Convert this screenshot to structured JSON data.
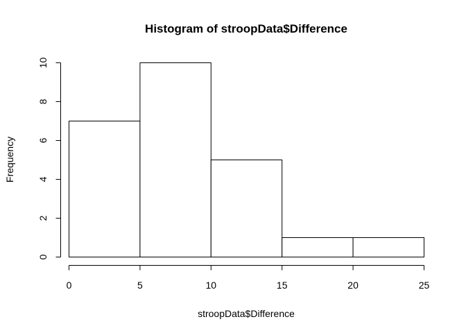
{
  "chart_data": {
    "type": "bar",
    "title": "Histogram of stroopData$Difference",
    "xlabel": "stroopData$Difference",
    "ylabel": "Frequency",
    "bins": [
      {
        "start": 0,
        "end": 5,
        "count": 7
      },
      {
        "start": 5,
        "end": 10,
        "count": 10
      },
      {
        "start": 10,
        "end": 15,
        "count": 5
      },
      {
        "start": 15,
        "end": 20,
        "count": 1
      },
      {
        "start": 20,
        "end": 25,
        "count": 1
      }
    ],
    "xlim": [
      0,
      25
    ],
    "ylim": [
      0,
      10
    ],
    "xticks": [
      "0",
      "5",
      "10",
      "15",
      "20",
      "25"
    ],
    "yticks": [
      "0",
      "2",
      "4",
      "6",
      "8",
      "10"
    ],
    "grid": false,
    "legend": "none",
    "bar_fill": "#ffffff",
    "bar_stroke": "#000000"
  }
}
